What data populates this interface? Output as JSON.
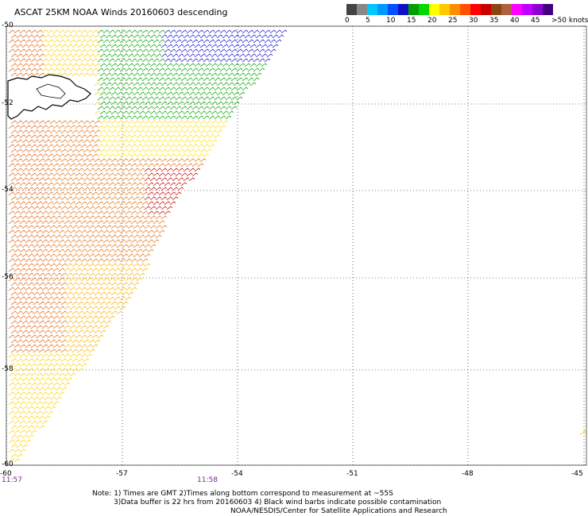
{
  "title": "ASCAT 25KM NOAA Winds 20160603 descending",
  "colorbar": {
    "colors": [
      "#444444",
      "#888888",
      "#00c8ff",
      "#0098ff",
      "#0050ff",
      "#1010c8",
      "#00a000",
      "#00d800",
      "#ffff00",
      "#ffc800",
      "#ff8c00",
      "#ff5000",
      "#ff0000",
      "#c80000",
      "#8b4513",
      "#b06040",
      "#ff00ff",
      "#c000ff",
      "#9000d0",
      "#400080"
    ],
    "labels": [
      "0",
      "5",
      "10",
      "15",
      "20",
      "25",
      "30",
      "35",
      "40",
      "45",
      ">50 knots"
    ]
  },
  "axes": {
    "lon_ticks": [
      "-60",
      "-57",
      "-54",
      "-51",
      "-48",
      "-45"
    ],
    "lat_ticks": [
      "-50",
      "-52",
      "-54",
      "-56",
      "-58",
      "-60"
    ]
  },
  "times": [
    "11:57",
    "11:58"
  ],
  "footer": {
    "line1": "Note: 1) Times are GMT 2)Times along bottom correspond to measurement at ~55S",
    "line2": "3)Data buffer is 22 hrs from 20160603 4) Black wind barbs indicate possible contamination",
    "line3": "NOAA/NESDIS/Center for Satellite Applications and Research"
  }
}
